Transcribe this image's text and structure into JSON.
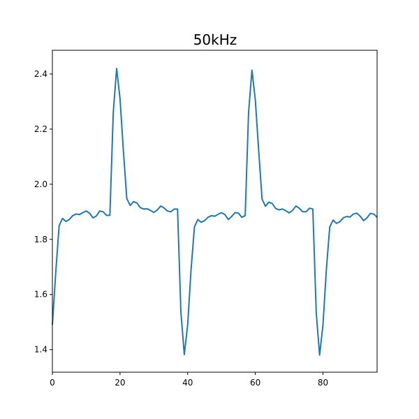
{
  "chart_data": {
    "type": "line",
    "title": "50kHz",
    "xlabel": "",
    "ylabel": "",
    "xlim": [
      0,
      96
    ],
    "ylim": [
      1.318,
      2.486
    ],
    "x_ticks": [
      0,
      20,
      40,
      60,
      80
    ],
    "y_ticks": [
      1.4,
      1.6,
      1.8,
      2.0,
      2.2,
      2.4
    ],
    "x_tick_labels": [
      "0",
      "20",
      "40",
      "60",
      "80"
    ],
    "y_tick_labels": [
      "1.4",
      "1.6",
      "1.8",
      "2.0",
      "2.2",
      "2.4"
    ],
    "grid": false,
    "legend": "none",
    "series": [
      {
        "color": "#1f77b4",
        "x": [
          0,
          1,
          2,
          3,
          4,
          5,
          6,
          7,
          8,
          9,
          10,
          11,
          12,
          13,
          14,
          15,
          16,
          17,
          18,
          19,
          20,
          21,
          22,
          23,
          24,
          25,
          26,
          27,
          28,
          29,
          30,
          31,
          32,
          33,
          34,
          35,
          36,
          37,
          38,
          39,
          40,
          41,
          42,
          43,
          44,
          45,
          46,
          47,
          48,
          49,
          50,
          51,
          52,
          53,
          54,
          55,
          56,
          57,
          58,
          59,
          60,
          61,
          62,
          63,
          64,
          65,
          66,
          67,
          68,
          69,
          70,
          71,
          72,
          73,
          74,
          75,
          76,
          77,
          78,
          79,
          80,
          81,
          82,
          83,
          84,
          85,
          86,
          87,
          88,
          89,
          90,
          91,
          92,
          93,
          94,
          95,
          96
        ],
        "values": [
          1.49,
          1.68,
          1.85,
          1.876,
          1.865,
          1.872,
          1.886,
          1.892,
          1.89,
          1.897,
          1.903,
          1.895,
          1.878,
          1.885,
          1.903,
          1.9,
          1.887,
          1.887,
          2.26,
          2.42,
          2.31,
          2.12,
          1.948,
          1.923,
          1.937,
          1.932,
          1.915,
          1.91,
          1.911,
          1.905,
          1.898,
          1.906,
          1.921,
          1.914,
          1.903,
          1.9,
          1.91,
          1.91,
          1.535,
          1.382,
          1.49,
          1.69,
          1.845,
          1.872,
          1.862,
          1.868,
          1.88,
          1.886,
          1.884,
          1.891,
          1.897,
          1.89,
          1.872,
          1.883,
          1.897,
          1.895,
          1.88,
          1.886,
          2.26,
          2.414,
          2.305,
          2.12,
          1.946,
          1.92,
          1.935,
          1.93,
          1.912,
          1.907,
          1.91,
          1.904,
          1.896,
          1.905,
          1.921,
          1.913,
          1.9,
          1.9,
          1.913,
          1.91,
          1.535,
          1.38,
          1.49,
          1.69,
          1.845,
          1.87,
          1.858,
          1.864,
          1.878,
          1.883,
          1.881,
          1.892,
          1.895,
          1.884,
          1.868,
          1.878,
          1.894,
          1.892,
          1.88
        ]
      }
    ]
  }
}
